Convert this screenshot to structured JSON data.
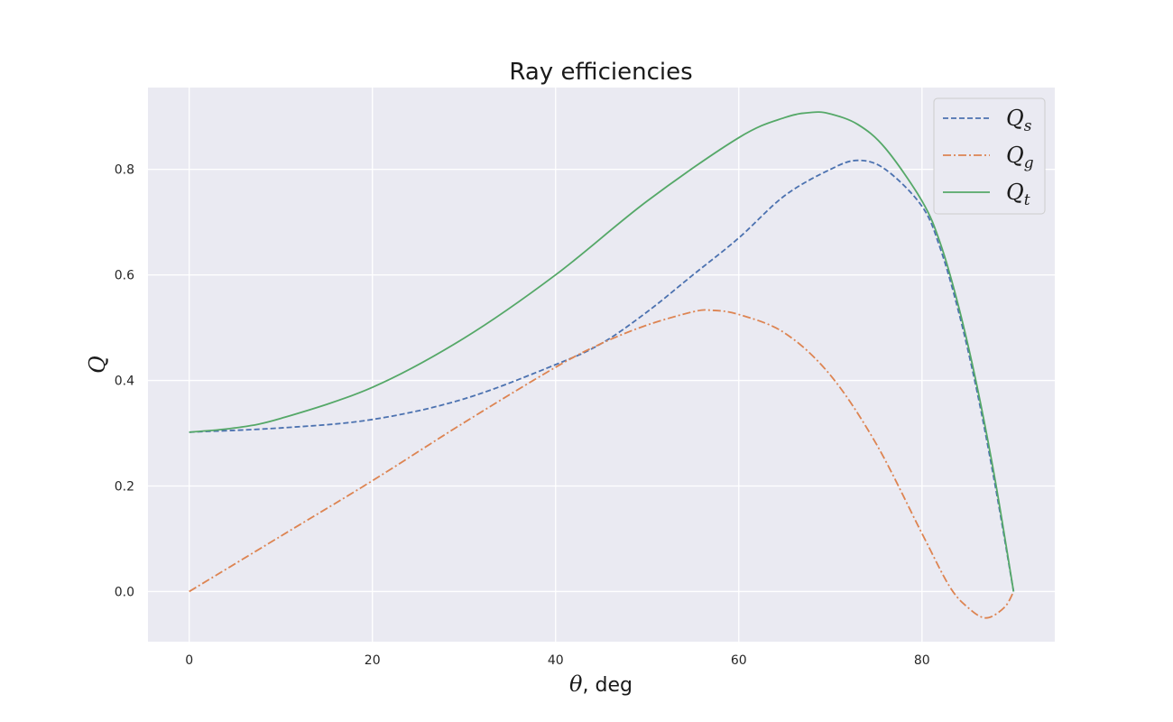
{
  "chart_data": {
    "type": "line",
    "title": "Ray efficiencies",
    "xlabel": {
      "symbol": "θ",
      "rest": ", deg"
    },
    "ylabel": "Q",
    "xlim": [
      -4.5,
      94.5
    ],
    "ylim": [
      -0.095,
      0.955
    ],
    "xticks": [
      0,
      20,
      40,
      60,
      80
    ],
    "yticks": [
      0.0,
      0.2,
      0.4,
      0.6,
      0.8
    ],
    "xtick_labels": [
      "0",
      "20",
      "40",
      "60",
      "80"
    ],
    "ytick_labels": [
      "0.0",
      "0.2",
      "0.4",
      "0.6",
      "0.8"
    ],
    "grid": true,
    "legend_position": "top-right",
    "background": "#eaeaf2",
    "series": [
      {
        "name": "Qs",
        "label": {
          "main": "Q",
          "sub": "s"
        },
        "color": "#4c72b0",
        "dash": "dashed",
        "x": [
          0,
          10,
          20,
          30,
          40,
          45,
          50,
          55,
          60,
          65,
          70,
          73,
          76,
          80,
          82,
          84,
          86,
          88,
          90
        ],
        "y": [
          0.302,
          0.31,
          0.326,
          0.365,
          0.43,
          0.47,
          0.53,
          0.6,
          0.67,
          0.75,
          0.8,
          0.817,
          0.8,
          0.73,
          0.65,
          0.53,
          0.38,
          0.2,
          0.0
        ]
      },
      {
        "name": "Qg",
        "label": {
          "main": "Q",
          "sub": "g"
        },
        "color": "#dd8452",
        "dash": "dashdot",
        "x": [
          0,
          10,
          20,
          30,
          40,
          45,
          50,
          55,
          57,
          60,
          65,
          70,
          75,
          80,
          83,
          85,
          87,
          89,
          90
        ],
        "y": [
          0.0,
          0.105,
          0.21,
          0.32,
          0.425,
          0.47,
          0.505,
          0.53,
          0.533,
          0.525,
          0.49,
          0.41,
          0.28,
          0.11,
          0.01,
          -0.03,
          -0.05,
          -0.03,
          0.0
        ]
      },
      {
        "name": "Qt",
        "label": {
          "main": "Q",
          "sub": "t"
        },
        "color": "#55a868",
        "dash": "solid",
        "x": [
          0,
          5,
          10,
          20,
          30,
          40,
          50,
          60,
          65,
          68,
          70,
          73,
          76,
          80,
          82,
          84,
          86,
          88,
          90
        ],
        "y": [
          0.302,
          0.31,
          0.328,
          0.387,
          0.48,
          0.6,
          0.74,
          0.86,
          0.898,
          0.908,
          0.905,
          0.885,
          0.84,
          0.74,
          0.66,
          0.54,
          0.39,
          0.21,
          0.0
        ]
      }
    ]
  }
}
